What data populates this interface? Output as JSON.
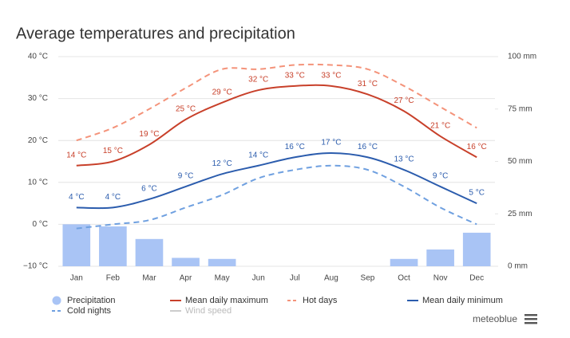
{
  "chart_data": {
    "type": "line",
    "title": "Average temperatures and precipitation",
    "categories": [
      "Jan",
      "Feb",
      "Mar",
      "Apr",
      "May",
      "Jun",
      "Jul",
      "Aug",
      "Sep",
      "Oct",
      "Nov",
      "Dec"
    ],
    "ylim": [
      -10,
      40
    ],
    "yticks": [
      {
        "value": -10,
        "label": "−10 °C"
      },
      {
        "value": 0,
        "label": "0 °C"
      },
      {
        "value": 10,
        "label": "10 °C"
      },
      {
        "value": 20,
        "label": "20 °C"
      },
      {
        "value": 30,
        "label": "30 °C"
      },
      {
        "value": 40,
        "label": "40 °C"
      }
    ],
    "y2lim": [
      0,
      100
    ],
    "y2ticks": [
      {
        "value": 0,
        "label": "0 mm"
      },
      {
        "value": 25,
        "label": "25 mm"
      },
      {
        "value": 50,
        "label": "50 mm"
      },
      {
        "value": 75,
        "label": "75 mm"
      },
      {
        "value": 100,
        "label": "100 mm"
      }
    ],
    "grid": true,
    "legend": "bottom",
    "brand": "meteoblue",
    "series": [
      {
        "name": "Precipitation",
        "type": "bar",
        "axis": "y2",
        "color": "#a9c4f5",
        "values": [
          20,
          19,
          13,
          4,
          3.5,
          0,
          0,
          0,
          0,
          3.5,
          8,
          16
        ]
      },
      {
        "name": "Mean daily maximum",
        "type": "line",
        "color": "#c8402a",
        "dash": false,
        "values": [
          14,
          15,
          19,
          25,
          29,
          32,
          33,
          33,
          31,
          27,
          21,
          16
        ],
        "value_labels": [
          "14 °C",
          "15 °C",
          "19 °C",
          "25 °C",
          "29 °C",
          "32 °C",
          "33 °C",
          "33 °C",
          "31 °C",
          "27 °C",
          "21 °C",
          "16 °C"
        ]
      },
      {
        "name": "Hot days",
        "type": "line",
        "color": "#f4937a",
        "dash": true,
        "values": [
          20,
          23,
          27.5,
          32.5,
          37,
          37,
          38,
          38,
          37,
          33,
          28,
          23
        ]
      },
      {
        "name": "Mean daily minimum",
        "type": "line",
        "color": "#2b5cad",
        "dash": false,
        "values": [
          4,
          4,
          6,
          9,
          12,
          14,
          16,
          17,
          16,
          13,
          9,
          5
        ],
        "value_labels": [
          "4 °C",
          "4 °C",
          "6 °C",
          "9 °C",
          "12 °C",
          "14 °C",
          "16 °C",
          "17 °C",
          "16 °C",
          "13 °C",
          "9 °C",
          "5 °C"
        ]
      },
      {
        "name": "Cold nights",
        "type": "line",
        "color": "#6fa0e0",
        "dash": true,
        "values": [
          -1,
          0,
          1,
          4,
          7,
          11,
          13,
          14,
          13,
          9,
          4,
          0
        ]
      },
      {
        "name": "Wind speed",
        "type": "line",
        "color": "#cccccc",
        "dash": false,
        "hidden": true,
        "values": [
          null,
          null,
          null,
          null,
          null,
          null,
          null,
          null,
          null,
          null,
          null,
          null
        ]
      }
    ]
  }
}
